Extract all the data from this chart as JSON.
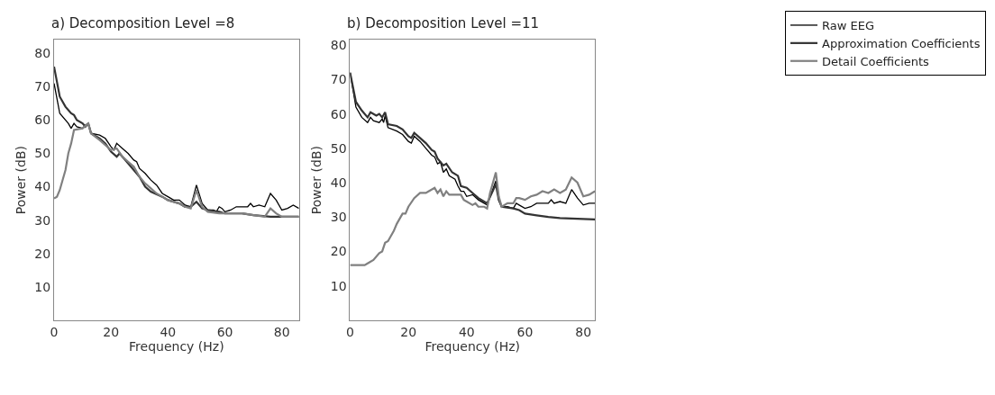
{
  "chart_data": [
    {
      "type": "line",
      "title": "a) Decomposition Level =8",
      "xlabel": "Frequency (Hz)",
      "ylabel": "Power (dB)",
      "xlim": [
        0,
        86
      ],
      "xticks": [
        0,
        20,
        40,
        60,
        80
      ],
      "ylim": [
        0,
        84
      ],
      "yticks": [
        10,
        20,
        30,
        40,
        50,
        60,
        70,
        80
      ],
      "series": [
        {
          "color": "#000000",
          "x": [
            0,
            2,
            5,
            6,
            7,
            8,
            10,
            11,
            12,
            13,
            16,
            18,
            20,
            21,
            22,
            24,
            26,
            28,
            29,
            30,
            32,
            34,
            36,
            38,
            40,
            42,
            44,
            46,
            48,
            50,
            52,
            54,
            56,
            57,
            58,
            59,
            60,
            62,
            64,
            66,
            68,
            69,
            70,
            72,
            74,
            76,
            78,
            80,
            82,
            84,
            86
          ],
          "values": [
            71,
            62,
            59,
            57.5,
            59,
            58,
            57.5,
            58.5,
            59,
            56,
            55.5,
            54.5,
            52,
            51,
            53,
            51.5,
            50,
            48,
            47.5,
            45.5,
            44,
            42,
            40.5,
            38,
            37,
            36,
            36,
            34.5,
            34,
            40.5,
            35,
            33,
            33,
            32.5,
            34,
            33.5,
            32.5,
            33,
            34,
            34,
            34,
            35,
            34,
            34.5,
            34,
            38,
            36,
            33,
            33.5,
            34.5,
            33.5
          ]
        },
        {
          "color": "#333333",
          "x": [
            0,
            2,
            4,
            6,
            7,
            8,
            10,
            11,
            12,
            13,
            16,
            18,
            20,
            22,
            23,
            26,
            28,
            30,
            32,
            34,
            38,
            40,
            44,
            46,
            48,
            50,
            52,
            54,
            58,
            60,
            66,
            70,
            76,
            86
          ],
          "values": [
            76,
            67,
            64,
            62,
            61.5,
            60,
            59,
            58,
            59,
            56,
            54.5,
            53,
            50.5,
            49,
            50,
            47,
            45,
            43,
            40,
            38.5,
            37,
            36,
            35,
            34,
            34,
            35.5,
            33.5,
            33,
            32.5,
            32,
            32,
            31.5,
            31,
            31
          ]
        },
        {
          "color": "#808080",
          "x": [
            0,
            1,
            2,
            4,
            5,
            6,
            7,
            10,
            12,
            13,
            16,
            18,
            20,
            22,
            24,
            26,
            28,
            30,
            32,
            34,
            36,
            38,
            40,
            42,
            44,
            46,
            48,
            50,
            52,
            54,
            58,
            62,
            66,
            70,
            74,
            76,
            78,
            80,
            86
          ],
          "values": [
            36.5,
            37,
            39,
            45,
            50,
            53,
            57,
            57.5,
            59,
            56,
            54,
            52.5,
            51,
            51.5,
            49,
            47.5,
            46,
            43,
            41,
            39.5,
            38,
            37,
            36,
            35.5,
            35,
            34,
            33.5,
            39,
            34,
            32.5,
            32,
            32,
            32,
            31.5,
            31,
            33.5,
            32,
            31,
            31
          ]
        }
      ]
    },
    {
      "type": "line",
      "title": "b) Decomposition Level =11",
      "xlabel": "Frequency (Hz)",
      "ylabel": "Power (dB)",
      "xlim": [
        0,
        84
      ],
      "xticks": [
        0,
        20,
        40,
        60,
        80
      ],
      "ylim": [
        0,
        81.5
      ],
      "yticks": [
        10,
        20,
        30,
        40,
        50,
        60,
        70,
        80
      ],
      "legend": "right",
      "series": [
        {
          "name": "Raw EEG",
          "color": "#000000",
          "x": [
            0,
            2,
            4,
            6,
            7,
            8,
            10,
            11,
            11.5,
            12,
            13,
            16,
            18,
            20,
            21,
            22,
            24,
            26,
            28,
            29,
            30,
            31,
            32,
            33,
            34,
            36,
            37,
            38,
            39,
            40,
            42,
            44,
            46,
            47,
            50,
            51,
            52,
            54,
            56,
            57,
            58,
            60,
            62,
            64,
            66,
            68,
            69,
            70,
            72,
            74,
            76,
            78,
            80,
            82,
            84
          ],
          "values": [
            72,
            62,
            59,
            57.5,
            59,
            58,
            57.5,
            58.5,
            57.5,
            59.5,
            56,
            55,
            54,
            52,
            51.5,
            53.5,
            52,
            50,
            48,
            47.5,
            45.5,
            46,
            43,
            44,
            42,
            41,
            39,
            37.5,
            37.5,
            36,
            36.5,
            35,
            34,
            33.5,
            40.5,
            35,
            33,
            33,
            32.5,
            34,
            33.5,
            32.5,
            33,
            34,
            34,
            34,
            35,
            34,
            34.5,
            34,
            38,
            35.5,
            33.5,
            34,
            34
          ]
        },
        {
          "name": "Approximation Coefficients",
          "color": "#333333",
          "x": [
            0,
            2,
            4,
            6,
            7,
            9,
            10,
            11,
            12,
            13,
            16,
            18,
            20,
            21,
            22,
            24,
            26,
            28,
            29,
            30,
            32,
            33,
            35,
            37,
            38,
            40,
            42,
            44,
            47,
            50,
            51,
            52,
            56,
            58,
            60,
            64,
            68,
            72,
            78,
            84
          ],
          "values": [
            72,
            63.5,
            61,
            59,
            60.5,
            59.5,
            60,
            59,
            60.5,
            57,
            56.5,
            55.5,
            53.5,
            53,
            54.5,
            53,
            51.5,
            49.5,
            49,
            47,
            45,
            45.5,
            43,
            42,
            39,
            38.5,
            37,
            35.5,
            34,
            39.5,
            35,
            33,
            32.5,
            32,
            31,
            30.5,
            30,
            29.7,
            29.5,
            29.3
          ]
        },
        {
          "name": "Detail Coefficients",
          "color": "#808080",
          "x": [
            0,
            5,
            6,
            8,
            10,
            11,
            12,
            13,
            15,
            16,
            18,
            19,
            20,
            22,
            24,
            25,
            26,
            27,
            29,
            30,
            31,
            32,
            33,
            34,
            36,
            38,
            39,
            40,
            42,
            43,
            44,
            46,
            47,
            48,
            50,
            51,
            52,
            54,
            56,
            57,
            58,
            60,
            62,
            64,
            66,
            68,
            70,
            72,
            74,
            76,
            78,
            80,
            82,
            84
          ],
          "values": [
            16,
            16,
            16.5,
            17.5,
            19.5,
            20,
            22.5,
            23,
            26,
            28,
            31,
            31,
            33,
            35.5,
            37,
            37,
            37,
            37.5,
            38.5,
            37,
            38,
            36,
            37.5,
            36.5,
            36.5,
            36.5,
            35,
            34.5,
            33.5,
            34,
            33,
            33,
            32.5,
            37,
            43,
            36,
            33,
            34,
            34,
            35.5,
            35.5,
            35,
            36,
            36.5,
            37.5,
            37,
            38,
            37,
            38,
            41.5,
            40,
            36,
            36.5,
            37.5
          ]
        }
      ]
    }
  ]
}
